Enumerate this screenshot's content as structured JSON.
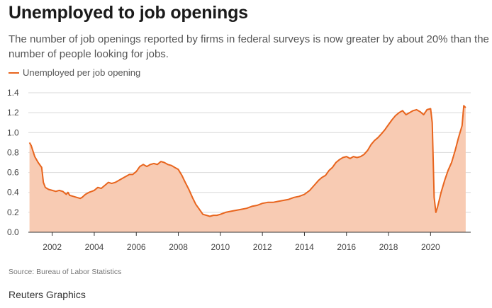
{
  "header": {
    "title": "Unemployed to job openings",
    "subtitle": "The number of job openings reported by firms in federal surveys is now greater by about 20% than the number of people looking for jobs."
  },
  "footer": {
    "source": "Source: Bureau of Labor Statistics",
    "credit": "Reuters Graphics"
  },
  "colors": {
    "line": "#e8651e",
    "area": "#f8cbb3",
    "grid": "#d9d9d9",
    "axis": "#333333",
    "tick_text": "#444444"
  },
  "chart_data": {
    "type": "area",
    "title": "Unemployed to job openings",
    "xlabel": "",
    "ylabel": "",
    "legend": "top-left",
    "grid": true,
    "series": [
      {
        "name": "Unemployed per job opening",
        "x": [
          2000.92,
          2001.0,
          2001.17,
          2001.33,
          2001.5,
          2001.58,
          2001.67,
          2001.75,
          2001.83,
          2002.0,
          2002.17,
          2002.33,
          2002.5,
          2002.67,
          2002.75,
          2002.83,
          2003.0,
          2003.17,
          2003.33,
          2003.42,
          2003.58,
          2003.75,
          2004.0,
          2004.17,
          2004.33,
          2004.5,
          2004.67,
          2004.83,
          2005.0,
          2005.17,
          2005.33,
          2005.5,
          2005.67,
          2005.83,
          2006.0,
          2006.17,
          2006.33,
          2006.5,
          2006.67,
          2006.83,
          2007.0,
          2007.17,
          2007.33,
          2007.5,
          2007.67,
          2007.83,
          2008.0,
          2008.17,
          2008.33,
          2008.5,
          2008.67,
          2008.83,
          2009.0,
          2009.17,
          2009.33,
          2009.5,
          2009.67,
          2009.83,
          2010.0,
          2010.25,
          2010.5,
          2010.75,
          2011.0,
          2011.25,
          2011.5,
          2011.75,
          2012.0,
          2012.25,
          2012.5,
          2012.75,
          2013.0,
          2013.25,
          2013.5,
          2013.75,
          2014.0,
          2014.25,
          2014.5,
          2014.67,
          2014.83,
          2015.0,
          2015.17,
          2015.33,
          2015.5,
          2015.67,
          2015.83,
          2016.0,
          2016.17,
          2016.33,
          2016.5,
          2016.67,
          2016.83,
          2017.0,
          2017.17,
          2017.33,
          2017.5,
          2017.67,
          2017.83,
          2018.0,
          2018.17,
          2018.33,
          2018.5,
          2018.67,
          2018.83,
          2019.0,
          2019.17,
          2019.33,
          2019.5,
          2019.67,
          2019.83,
          2020.0,
          2020.08,
          2020.17,
          2020.25,
          2020.33,
          2020.5,
          2020.67,
          2020.83,
          2021.0,
          2021.17,
          2021.33,
          2021.5,
          2021.58,
          2021.67
        ],
        "values": [
          0.9,
          0.87,
          0.76,
          0.7,
          0.65,
          0.5,
          0.45,
          0.44,
          0.43,
          0.42,
          0.41,
          0.42,
          0.41,
          0.38,
          0.4,
          0.37,
          0.36,
          0.35,
          0.34,
          0.35,
          0.38,
          0.4,
          0.42,
          0.45,
          0.44,
          0.47,
          0.5,
          0.49,
          0.5,
          0.52,
          0.54,
          0.56,
          0.58,
          0.58,
          0.61,
          0.66,
          0.68,
          0.66,
          0.68,
          0.69,
          0.68,
          0.71,
          0.7,
          0.68,
          0.67,
          0.65,
          0.63,
          0.57,
          0.5,
          0.43,
          0.35,
          0.28,
          0.23,
          0.18,
          0.17,
          0.16,
          0.17,
          0.17,
          0.18,
          0.2,
          0.21,
          0.22,
          0.23,
          0.24,
          0.26,
          0.27,
          0.29,
          0.3,
          0.3,
          0.31,
          0.32,
          0.33,
          0.35,
          0.36,
          0.38,
          0.42,
          0.48,
          0.52,
          0.55,
          0.57,
          0.62,
          0.65,
          0.7,
          0.73,
          0.75,
          0.76,
          0.74,
          0.76,
          0.75,
          0.76,
          0.78,
          0.82,
          0.88,
          0.92,
          0.95,
          0.99,
          1.03,
          1.08,
          1.13,
          1.17,
          1.2,
          1.22,
          1.18,
          1.2,
          1.22,
          1.23,
          1.21,
          1.18,
          1.23,
          1.24,
          1.1,
          0.35,
          0.2,
          0.25,
          0.4,
          0.52,
          0.62,
          0.7,
          0.82,
          0.95,
          1.07,
          1.27,
          1.25
        ]
      }
    ],
    "x_ticks": [
      2002,
      2004,
      2006,
      2008,
      2010,
      2012,
      2014,
      2016,
      2018,
      2020
    ],
    "x_tick_labels": [
      "2002",
      "2004",
      "2006",
      "2008",
      "2010",
      "2012",
      "2014",
      "2016",
      "2018",
      "2020"
    ],
    "y_ticks": [
      0,
      0.2,
      0.4,
      0.6,
      0.8,
      1.0,
      1.2,
      1.4
    ],
    "y_tick_labels": [
      "0.0",
      "0.2",
      "0.4",
      "0.6",
      "0.8",
      "1.0",
      "1.2",
      "1.4"
    ],
    "xlim": [
      2000.83,
      2021.83
    ],
    "ylim": [
      0,
      1.4
    ]
  }
}
